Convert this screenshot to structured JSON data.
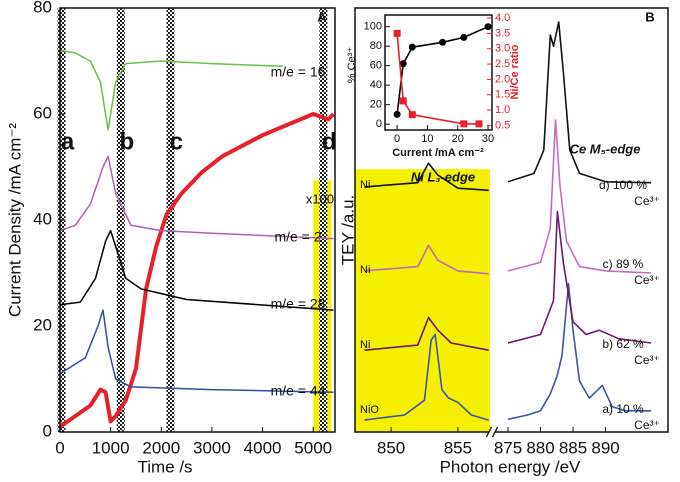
{
  "chart_data": [
    {
      "type": "line",
      "panel_label": "A",
      "xlabel": "Time /s",
      "ylabel": "Current Density /mA cm⁻²",
      "xlim": [
        0,
        5430
      ],
      "xticks": [
        0,
        1000,
        2000,
        3000,
        4000,
        5000
      ],
      "ylim": [
        0,
        80
      ],
      "yticks": [
        0,
        20,
        40,
        60,
        80
      ],
      "annotations": [
        "x100"
      ],
      "markers": [
        {
          "label": "a",
          "x": 30
        },
        {
          "label": "b",
          "x": 1200
        },
        {
          "label": "c",
          "x": 2180
        },
        {
          "label": "d",
          "x": 5200
        }
      ],
      "series": [
        {
          "color": "#e8202a",
          "width": 4,
          "x": [
            0,
            300,
            600,
            800,
            900,
            1000,
            1100,
            1300,
            1500,
            1700,
            1900,
            2100,
            2400,
            2800,
            3200,
            3600,
            4000,
            4500,
            5000,
            5300,
            5400
          ],
          "values": [
            1,
            3,
            5,
            8,
            7.5,
            2,
            3,
            6,
            12,
            27,
            35,
            41,
            45,
            49,
            52,
            54,
            56,
            58,
            60,
            59,
            60
          ]
        },
        {
          "name": "m/e = 16",
          "color": "#6abf4b",
          "width": 1.5,
          "x": [
            0,
            300,
            600,
            800,
            950,
            1100,
            1300,
            2000,
            3000,
            4400
          ],
          "values": [
            72,
            71.5,
            70,
            66,
            57,
            66,
            69.5,
            70,
            69.5,
            69
          ]
        },
        {
          "name": "m/e = 2",
          "color": "#b05fb0",
          "width": 1.5,
          "x": [
            0,
            300,
            600,
            850,
            950,
            1100,
            1400,
            2000,
            3000,
            5400
          ],
          "values": [
            38,
            39,
            43,
            50,
            52,
            45,
            39,
            38,
            37.5,
            36.5
          ]
        },
        {
          "name": "m/e = 28",
          "color": "#000000",
          "width": 1.5,
          "x": [
            0,
            400,
            700,
            900,
            1000,
            1100,
            1300,
            1600,
            2500,
            5400
          ],
          "values": [
            24,
            24.5,
            29,
            36,
            38,
            35,
            29,
            27,
            25,
            23
          ]
        },
        {
          "name": "m/e = 44",
          "color": "#2f4fa0",
          "width": 1.5,
          "x": [
            0,
            500,
            750,
            850,
            950,
            1100,
            1400,
            3000,
            5400
          ],
          "values": [
            11,
            14,
            20,
            23,
            16,
            10,
            8.5,
            8,
            7.5
          ]
        }
      ]
    },
    {
      "type": "line",
      "panel_label": "B",
      "xlabel": "Photon energy /eV",
      "ylabel": "TEY /a.u.",
      "xlim_segments": [
        [
          847.3,
          857.4
        ],
        [
          873,
          899.6
        ]
      ],
      "xticks": [
        850,
        855,
        875,
        880,
        885,
        890
      ],
      "ylim": [
        0,
        100
      ],
      "highlight_color": "#f5f000",
      "annotations": [
        "Ni L₃-edge",
        "Ce M₅-edge",
        "d) 100 %",
        "Ce³⁺",
        "c) 89 %",
        "Ce³⁺",
        "b) 62 %",
        "Ce³⁺",
        "a) 10 %",
        "Ce³⁺"
      ],
      "series": [
        {
          "color": "#3a56a8",
          "x": [
            875,
            878,
            880,
            881.5,
            882.5,
            883.3,
            884.3,
            885,
            886,
            887.5,
            889.5,
            891,
            893,
            897
          ],
          "values": [
            3,
            4,
            5,
            9,
            13,
            18,
            35,
            24,
            12,
            8,
            11,
            6,
            5,
            5
          ]
        },
        {
          "color": "#6b1a6b",
          "x": [
            875,
            880,
            882,
            882.6,
            883.5,
            884.2,
            885,
            887,
            889,
            892,
            897
          ],
          "values": [
            21,
            23,
            31,
            52,
            40,
            33.5,
            26,
            23,
            24,
            22,
            21
          ]
        },
        {
          "color": "#c46bc0",
          "x": [
            875,
            880,
            881.5,
            882.3,
            883,
            884,
            886,
            890,
            897
          ],
          "values": [
            38,
            40,
            48,
            73.6,
            58,
            45,
            39,
            38,
            37.5
          ]
        },
        {
          "color": "#111111",
          "x": [
            875,
            879,
            880.5,
            881.5,
            882,
            882.8,
            883.5,
            884.5,
            886,
            890,
            897
          ],
          "values": [
            59,
            61,
            66.5,
            93.6,
            91,
            96.7,
            85,
            66.5,
            61,
            59,
            58.8
          ]
        },
        {
          "name": "NiO",
          "color": "#3a56a8",
          "x": [
            848,
            851,
            852.5,
            853,
            853.3,
            853.8,
            854.3,
            855,
            856,
            857.3
          ],
          "values": [
            2.8,
            4,
            7.5,
            21.7,
            23,
            10,
            8,
            7,
            4,
            2.8
          ]
        },
        {
          "name": "Ni",
          "color": "#6b1a6b",
          "x": [
            848,
            852,
            852.8,
            853.5,
            854.5,
            857.3
          ],
          "values": [
            19.3,
            20.5,
            27,
            24,
            21,
            19.3
          ]
        },
        {
          "name": "Ni",
          "color": "#c46bc0",
          "x": [
            848,
            852,
            852.8,
            853.5,
            855,
            857.3
          ],
          "values": [
            38,
            39,
            44,
            40.5,
            38,
            37.3
          ]
        },
        {
          "name": "Ni",
          "color": "#111111",
          "x": [
            848,
            852,
            852.8,
            853.5,
            855,
            857.3
          ],
          "values": [
            57.8,
            58.8,
            63.4,
            60.6,
            57.5,
            57
          ]
        }
      ]
    },
    {
      "type": "line",
      "xlabel": "Current /mA cm⁻²",
      "ylabel": "% Ce³⁺",
      "y2label": "Ni/Ce ratio",
      "y2color": "#e8202a",
      "xlim": [
        -4,
        31.3
      ],
      "xticks": [
        0,
        10,
        20,
        30
      ],
      "ylim": [
        -6,
        112
      ],
      "yticks": [
        0,
        20,
        40,
        60,
        80,
        100
      ],
      "y2lim": [
        0.35,
        4.1
      ],
      "y2ticks": [
        {
          "value": 0.5,
          "label": "0.5"
        },
        {
          "value": 1,
          "label": "1.0"
        },
        {
          "value": 1.5,
          "label": "1.5"
        },
        {
          "value": 2,
          "label": "2.0"
        },
        {
          "value": 2.5,
          "label": "2.5"
        },
        {
          "value": 3,
          "label": "3.0"
        },
        {
          "value": 3.5,
          "label": "3.5"
        },
        {
          "value": 4,
          "label": "4.0"
        }
      ],
      "series": [
        {
          "color": "#000000",
          "marker": "circle",
          "x": [
            0,
            2,
            5,
            15,
            22,
            30
          ],
          "values": [
            10,
            62,
            79,
            84,
            89,
            100
          ]
        },
        {
          "color": "#e8202a",
          "marker": "square",
          "axis": "y2",
          "x": [
            0,
            2,
            5,
            22,
            27
          ],
          "values": [
            3.5,
            1.3,
            0.85,
            0.55,
            0.55
          ]
        }
      ]
    }
  ]
}
